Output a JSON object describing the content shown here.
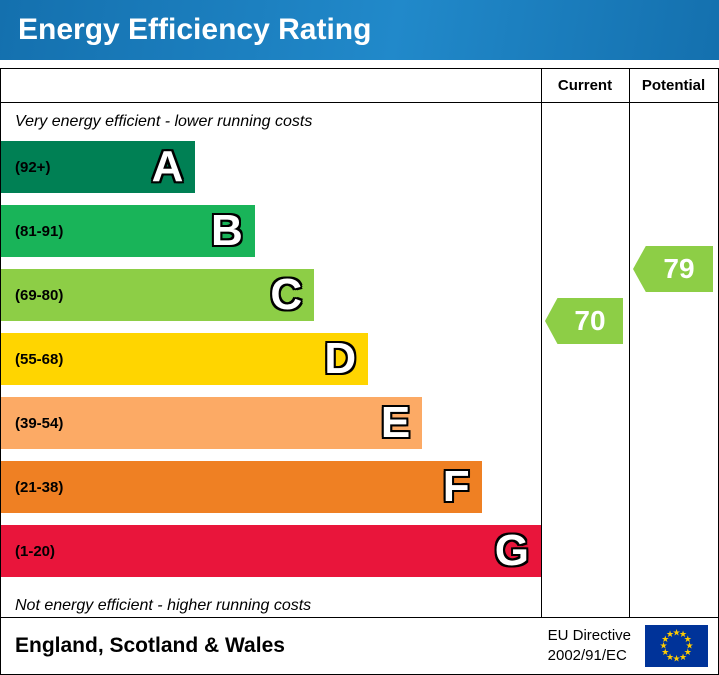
{
  "title": "Energy Efficiency Rating",
  "table": {
    "current_header": "Current",
    "potential_header": "Potential"
  },
  "notes": {
    "top": "Very energy efficient - lower running costs",
    "bottom": "Not energy efficient - higher running costs"
  },
  "footer": {
    "region": "England, Scotland & Wales",
    "directive_line1": "EU Directive",
    "directive_line2": "2002/91/EC"
  },
  "chart_data": {
    "type": "bar",
    "title": "Energy Efficiency Rating",
    "orientation": "horizontal",
    "bands": [
      {
        "letter": "A",
        "range": "(92+)",
        "min": 92,
        "max": 100,
        "color": "#008054",
        "width_pct": 36
      },
      {
        "letter": "B",
        "range": "(81-91)",
        "min": 81,
        "max": 91,
        "color": "#19b459",
        "width_pct": 47
      },
      {
        "letter": "C",
        "range": "(69-80)",
        "min": 69,
        "max": 80,
        "color": "#8dce46",
        "width_pct": 58
      },
      {
        "letter": "D",
        "range": "(55-68)",
        "min": 55,
        "max": 68,
        "color": "#ffd500",
        "width_pct": 68
      },
      {
        "letter": "E",
        "range": "(39-54)",
        "min": 39,
        "max": 54,
        "color": "#fcaa65",
        "width_pct": 78
      },
      {
        "letter": "F",
        "range": "(21-38)",
        "min": 21,
        "max": 38,
        "color": "#ef8023",
        "width_pct": 89
      },
      {
        "letter": "G",
        "range": "(1-20)",
        "min": 1,
        "max": 20,
        "color": "#e9153b",
        "width_pct": 100
      }
    ],
    "current": {
      "value": 70,
      "band": "C",
      "color": "#8dce46"
    },
    "potential": {
      "value": 79,
      "band": "C",
      "color": "#8dce46"
    }
  }
}
